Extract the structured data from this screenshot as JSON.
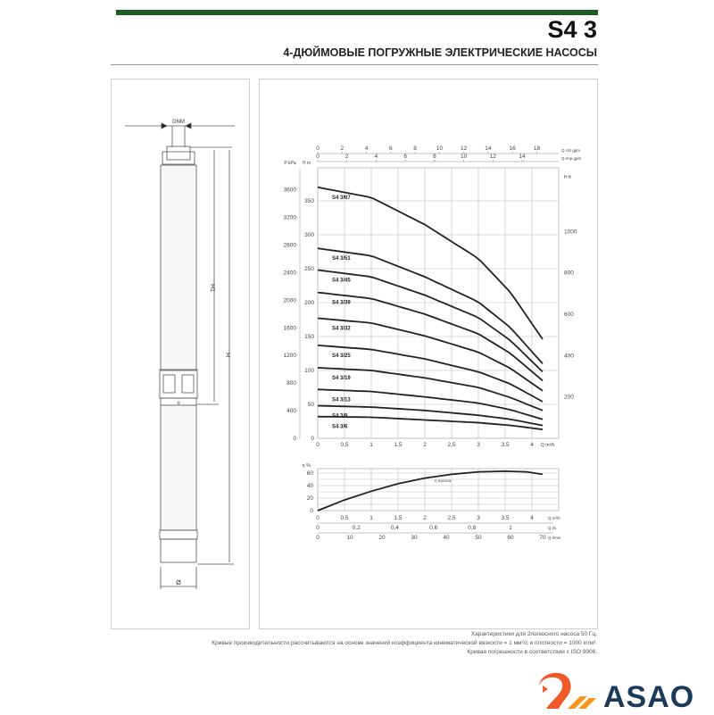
{
  "header": {
    "title": "S4 3",
    "subtitle": "4-ДЮЙМОВЫЕ ПОГРУЖНЫЕ ЭЛЕКТРИЧЕСКИЕ НАСОСЫ",
    "accent": "#1b5e20"
  },
  "drawing": {
    "labels": {
      "dnm": "DNM",
      "h1": "H1",
      "h": "H",
      "d": "Ø",
      "o": "o"
    }
  },
  "chart_data": [
    {
      "type": "line",
      "ylabel": "H m",
      "ylabel_left": "P kPa",
      "ylabel_right": "H ft",
      "xlabel": "Q m³/h",
      "xlim": [
        0,
        4.4
      ],
      "ylim": [
        0,
        400
      ],
      "x_ticks": [
        0,
        0.5,
        1,
        1.5,
        2,
        2.5,
        3,
        3.5,
        4
      ],
      "x_tick_labels": [
        "0",
        "0,5",
        "1",
        "1,5",
        "2",
        "2,5",
        "3",
        "3,5",
        "4"
      ],
      "y_ticks": [
        0,
        50,
        100,
        150,
        200,
        250,
        300,
        350
      ],
      "kpa_ticks": [
        0,
        400,
        800,
        1200,
        1600,
        2000,
        2400,
        2800,
        3200,
        3600
      ],
      "ft_ticks": [
        200,
        400,
        600,
        800,
        1000
      ],
      "top_axis_1": {
        "label": "Q US gpm",
        "ticks": [
          0,
          2,
          4,
          6,
          8,
          10,
          12,
          14,
          16,
          18
        ]
      },
      "top_axis_2": {
        "label": "Q Imp gpm",
        "ticks": [
          0,
          2,
          4,
          6,
          8,
          10,
          12,
          14
        ]
      },
      "grid": true,
      "x": [
        0,
        1,
        2,
        3,
        3.6,
        4.2
      ],
      "series": [
        {
          "name": "S4 3/67",
          "values": [
            370,
            355,
            315,
            265,
            215,
            146
          ]
        },
        {
          "name": "S4 3/51",
          "values": [
            280,
            269,
            238,
            201,
            163,
            110
          ]
        },
        {
          "name": "S4 3/45",
          "values": [
            248,
            238,
            211,
            178,
            144,
            98
          ]
        },
        {
          "name": "S4 3/39",
          "values": [
            215,
            206,
            183,
            154,
            125,
            85
          ]
        },
        {
          "name": "S4 3/32",
          "values": [
            177,
            170,
            151,
            127,
            103,
            70
          ]
        },
        {
          "name": "S4 3/25",
          "values": [
            137,
            131,
            117,
            98,
            80,
            54
          ]
        },
        {
          "name": "S4 3/19",
          "values": [
            104,
            100,
            89,
            75,
            60,
            41
          ]
        },
        {
          "name": "S4 3/13",
          "values": [
            72,
            69,
            61,
            52,
            42,
            28
          ]
        },
        {
          "name": "S4 3/9",
          "values": [
            48,
            46,
            41,
            34,
            28,
            19
          ]
        },
        {
          "name": "S4 3/6",
          "values": [
            32,
            31,
            27,
            23,
            19,
            13
          ]
        }
      ]
    },
    {
      "type": "line",
      "ylabel": "η %",
      "xlim": [
        0,
        4.4
      ],
      "ylim": [
        0,
        70
      ],
      "y_ticks": [
        0,
        20,
        40,
        60
      ],
      "bottom_axes": [
        {
          "label": "Q m³/h",
          "ticks": [
            "0",
            "0,5",
            "1",
            "1,5",
            "2",
            "2,5",
            "3",
            "3,5",
            "4"
          ]
        },
        {
          "label": "Q l/s",
          "ticks": [
            "0",
            "0,2",
            "0,4",
            "0,6",
            "0,8",
            "1"
          ]
        },
        {
          "label": "Q l/min",
          "ticks": [
            "0",
            "10",
            "20",
            "30",
            "40",
            "50",
            "60",
            "70"
          ]
        }
      ],
      "series": [
        {
          "name": "η насоса",
          "x": [
            0,
            0.5,
            1,
            1.5,
            2,
            2.5,
            3,
            3.5,
            3.9,
            4.2
          ],
          "values": [
            0,
            17,
            31,
            43,
            52,
            58,
            62,
            63,
            62,
            58
          ]
        }
      ]
    }
  ],
  "footer": {
    "line1": "Характеристики для 2полюсного насоса 50 Гц.",
    "line2": "Кривые производительности рассчитываются на основе значений коэффициента кинематической вязкости = 1 мм²/с и плотности = 1000 кг/м³.",
    "line3": "Кривая погрешности в соответствии с ISO 9906."
  },
  "logo": {
    "text": "ASAO",
    "colors": [
      "#f05a28",
      "#f7941d",
      "#1c3b5a"
    ]
  }
}
